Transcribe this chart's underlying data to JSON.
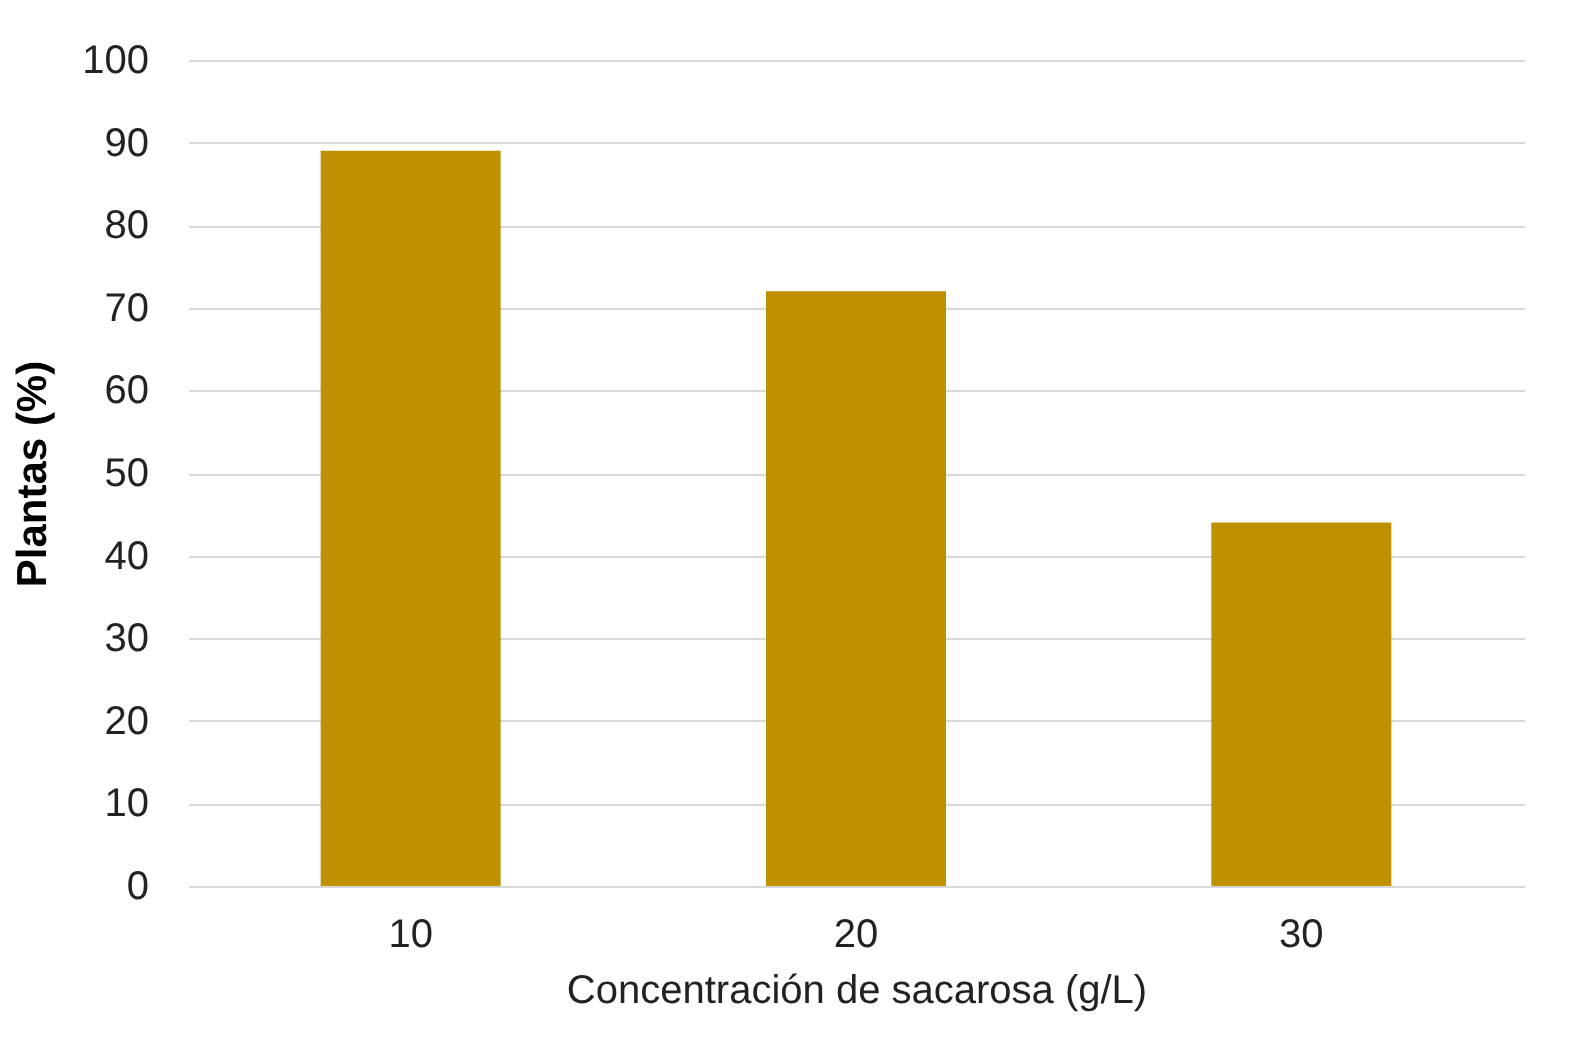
{
  "chart_data": {
    "type": "bar",
    "xlabel": "Concentración de sacarosa (g/L)",
    "ylabel": "Plantas (%)",
    "categories": [
      "10",
      "20",
      "30"
    ],
    "series": [
      {
        "color": "#bf9000",
        "values": [
          89,
          72,
          44
        ]
      }
    ],
    "ylim": [
      0,
      100
    ],
    "yticks": [
      0,
      10,
      20,
      30,
      40,
      50,
      60,
      70,
      80,
      90,
      100
    ],
    "grid": "y",
    "legend": false
  }
}
